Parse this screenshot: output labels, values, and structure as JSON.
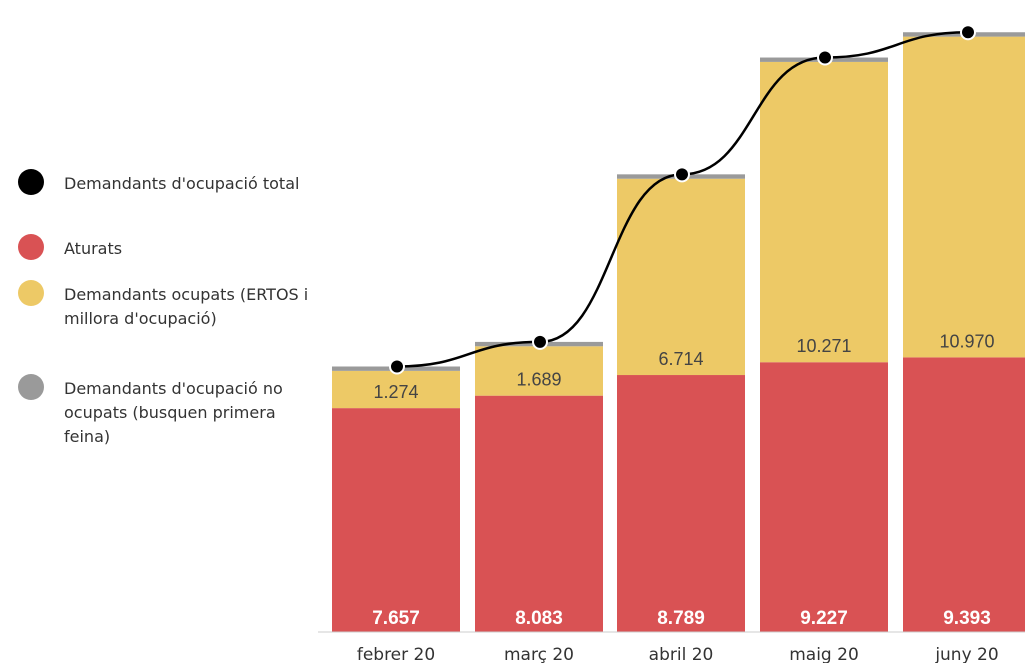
{
  "legend": {
    "items": [
      {
        "label": "Demandants d'ocupació total",
        "color": "#000000",
        "name": "legend-item-total"
      },
      {
        "label": "Aturats",
        "color": "#d95254",
        "name": "legend-item-aturats"
      },
      {
        "label": "Demandants ocupats (ERTOS i millora d'ocupació)",
        "color": "#edc966",
        "name": "legend-item-ocupats"
      },
      {
        "label": "Demandants d'ocupació no ocupats (busquen primera feina)",
        "color": "#9a9a9a",
        "name": "legend-item-no-ocupats"
      }
    ]
  },
  "chart_data": {
    "type": "bar",
    "stacked": true,
    "categories": [
      "febrer 20",
      "març 20",
      "abril 20",
      "maig 20",
      "juny 20"
    ],
    "series": [
      {
        "name": "Aturats",
        "color": "#d95254",
        "values": [
          7657,
          8083,
          8789,
          9227,
          9393
        ],
        "labels": [
          "7.657",
          "8.083",
          "8.789",
          "9.227",
          "9.393"
        ]
      },
      {
        "name": "Demandants ocupats (ERTOS i millora d'ocupació)",
        "color": "#edc966",
        "values": [
          1274,
          1689,
          6714,
          10271,
          10970
        ],
        "labels": [
          "1.274",
          "1.689",
          "6.714",
          "10.271",
          "10.970"
        ]
      },
      {
        "name": "Demandants d'ocupació no ocupats (busquen primera feina)",
        "color": "#9a9a9a",
        "values": [
          150,
          150,
          150,
          150,
          150
        ]
      }
    ],
    "line": {
      "name": "Demandants d'ocupació total",
      "color": "#000000",
      "values": [
        9081,
        9922,
        15653,
        19648,
        20513
      ]
    },
    "ylim": [
      0,
      21000
    ],
    "grid": false,
    "legend_position": "left"
  }
}
